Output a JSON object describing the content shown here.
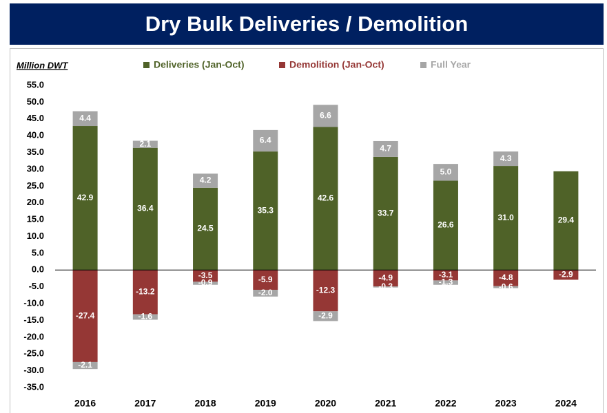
{
  "chart_data": {
    "type": "stacked_bar",
    "title": "Dry Bulk Deliveries / Demolition",
    "ylabel": "Million DWT",
    "categories": [
      "2016",
      "2017",
      "2018",
      "2019",
      "2020",
      "2021",
      "2022",
      "2023",
      "2024"
    ],
    "series": [
      {
        "name": "Deliveries (Jan-Oct)",
        "color": "#4f6228",
        "values": [
          42.9,
          36.4,
          24.5,
          35.3,
          42.6,
          33.7,
          26.6,
          31.0,
          29.4
        ],
        "value_labels": [
          "42.9",
          "36.4",
          "24.5",
          "35.3",
          "42.6",
          "33.7",
          "26.6",
          "31.0",
          "29.4"
        ]
      },
      {
        "name": "Demolition (Jan-Oct)",
        "color": "#953735",
        "values": [
          -27.4,
          -13.2,
          -3.5,
          -5.9,
          -12.3,
          -4.9,
          -3.1,
          -4.8,
          -2.9
        ],
        "value_labels": [
          "-27.4",
          "-13.2",
          "-3.5",
          "-5.9",
          "-12.3",
          "-4.9",
          "-3.1",
          "-4.8",
          "-2.9"
        ]
      },
      {
        "name": "Full Year",
        "color": "#a6a6a6",
        "values": [
          4.4,
          2.1,
          4.2,
          6.4,
          6.6,
          4.7,
          5.0,
          4.3,
          null
        ],
        "value_labels": [
          "4.4",
          "2.1",
          "4.2",
          "6.4",
          "6.6",
          "4.7",
          "5.0",
          "4.3",
          null
        ]
      },
      {
        "color": "#a6a6a6",
        "values": [
          -2.1,
          -1.6,
          -0.9,
          -2.0,
          -2.9,
          -0.3,
          -1.3,
          -0.6,
          null
        ],
        "value_labels": [
          "-2.1",
          "-1.6",
          "-0.9",
          "-2.0",
          "-2.9",
          "-0.3",
          "-1.3",
          "-0.6",
          null
        ]
      }
    ],
    "ylim": [
      -35,
      55
    ],
    "yticks": [
      {
        "value": 55,
        "label": "55.0"
      },
      {
        "value": 50,
        "label": "50.0"
      },
      {
        "value": 45,
        "label": "45.0"
      },
      {
        "value": 40,
        "label": "40.0"
      },
      {
        "value": 35,
        "label": "35.0"
      },
      {
        "value": 30,
        "label": "30.0"
      },
      {
        "value": 25,
        "label": "25.0"
      },
      {
        "value": 20,
        "label": "20.0"
      },
      {
        "value": 15,
        "label": "15.0"
      },
      {
        "value": 10,
        "label": "10.0"
      },
      {
        "value": 5,
        "label": "5.0"
      },
      {
        "value": 0,
        "label": "0.0"
      },
      {
        "value": -5,
        "label": "-5.0"
      },
      {
        "value": -10,
        "label": "-10.0"
      },
      {
        "value": -15,
        "label": "-15.0"
      },
      {
        "value": -20,
        "label": "-20.0"
      },
      {
        "value": -25,
        "label": "-25.0"
      },
      {
        "value": -30,
        "label": "-30.0"
      },
      {
        "value": -35,
        "label": "-35.0"
      }
    ],
    "grid": false
  }
}
